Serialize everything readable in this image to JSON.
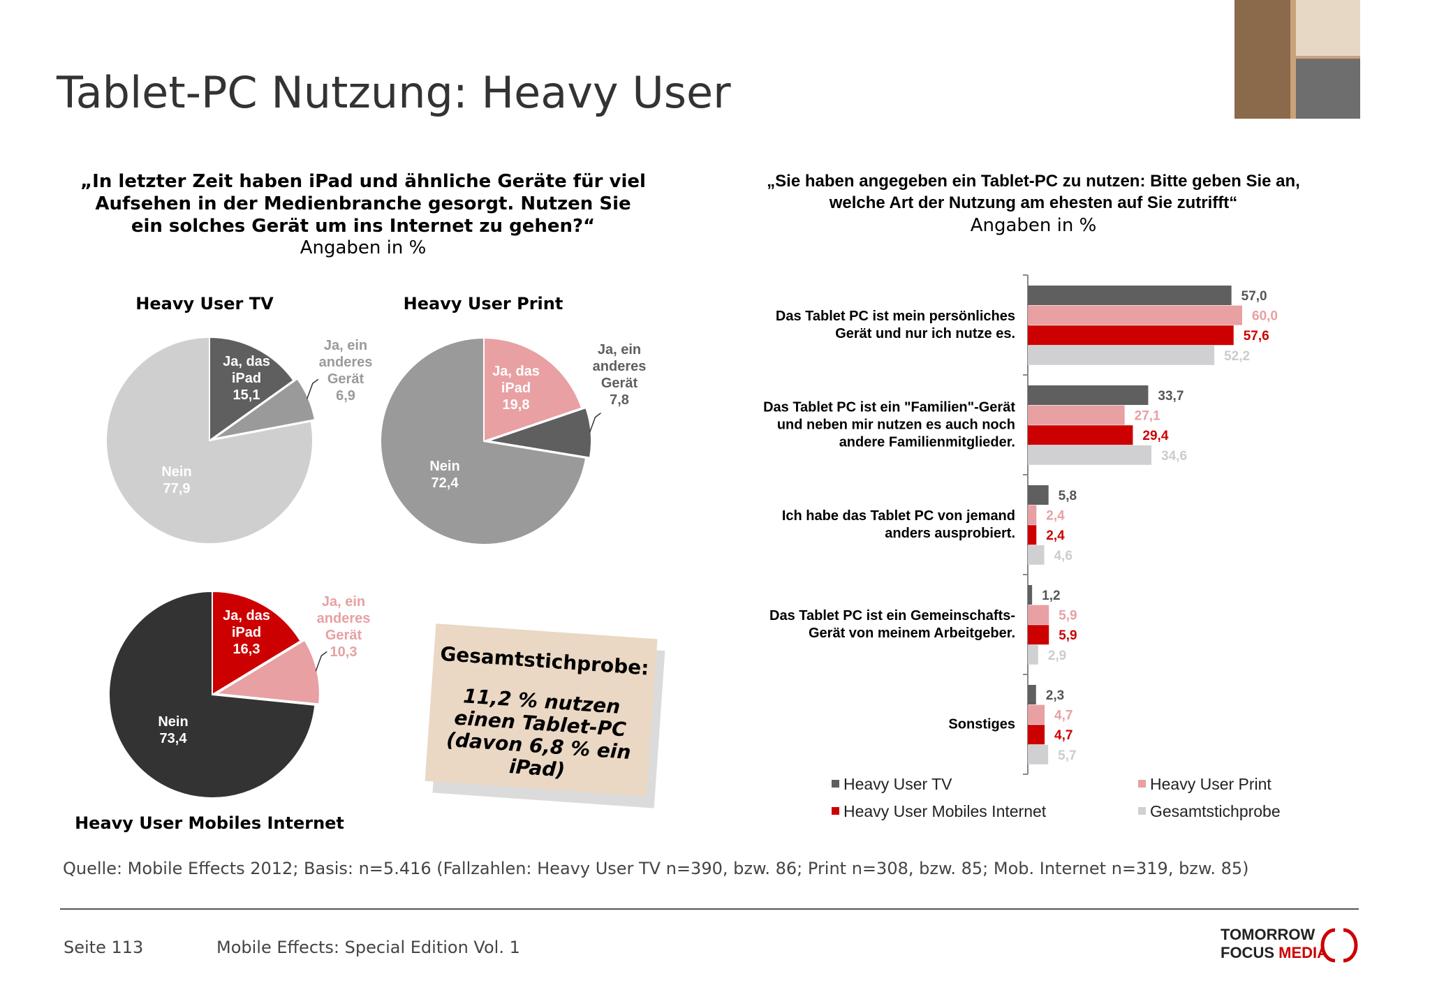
{
  "title": "Tablet-PC Nutzung: Heavy User",
  "left_question": {
    "text": "„In letzter Zeit haben iPad und ähnliche Geräte für viel Aufsehen in der Medienbranche gesorgt. Nutzen Sie ein solches Gerät um ins Internet zu gehen?“",
    "note": "Angaben in %"
  },
  "right_question": {
    "text": "„Sie haben angegeben ein Tablet-PC zu nutzen: Bitte geben Sie an, welche Art der Nutzung am ehesten auf Sie zutrifft“",
    "note": "Angaben in %"
  },
  "sticky_note": {
    "heading": "Gesamtstichprobe:",
    "text": "11,2 % nutzen einen Tablet-PC (davon 6,8 % ein iPad)"
  },
  "source": "Quelle: Mobile Effects 2012; Basis: n=5.416 (Fallzahlen: Heavy User TV n=390, bzw. 86; Print n=308, bzw. 85; Mob. Internet n=319, bzw. 85)",
  "footer": {
    "page": "Seite 113",
    "edition": "Mobile Effects: Special Edition Vol. 1"
  },
  "logo": {
    "line1": "TOMORROW",
    "line2a": "FOCUS",
    "line2b": "MEDIA"
  },
  "chart_data": [
    {
      "type": "pie",
      "title": "Heavy User TV",
      "categories": [
        "Ja, das iPad",
        "Ja, ein anderes Gerät",
        "Nein"
      ],
      "values": [
        15.1,
        6.9,
        77.9
      ],
      "value_labels": [
        "15,1",
        "6,9",
        "77,9"
      ],
      "colors": [
        "#5f5f5f",
        "#9a9a9a",
        "#cfcfcf"
      ]
    },
    {
      "type": "pie",
      "title": "Heavy User Print",
      "categories": [
        "Ja, das iPad",
        "Ja, ein anderes Gerät",
        "Nein"
      ],
      "values": [
        19.8,
        7.8,
        72.4
      ],
      "value_labels": [
        "19,8",
        "7,8",
        "72,4"
      ],
      "colors": [
        "#e8a0a3",
        "#5f5f5f",
        "#9a9a9a"
      ]
    },
    {
      "type": "pie",
      "title": "Heavy User Mobiles Internet",
      "categories": [
        "Ja, das iPad",
        "Ja, ein anderes Gerät",
        "Nein"
      ],
      "values": [
        16.3,
        10.3,
        73.4
      ],
      "value_labels": [
        "16,3",
        "10,3",
        "73,4"
      ],
      "colors": [
        "#cc0000",
        "#e8a0a3",
        "#333333"
      ]
    },
    {
      "type": "hbar",
      "categories": [
        "Das Tablet PC ist mein persönliches Gerät und nur ich nutze es.",
        "Das Tablet PC ist ein \"Familien\"-Gerät und neben mir nutzen es auch noch andere Familienmitglieder.",
        "Ich habe das Tablet PC von jemand anders ausprobiert.",
        "Das Tablet PC ist ein Gemeinschafts-Gerät von meinem Arbeitgeber.",
        "Sonstiges"
      ],
      "xlim": [
        0,
        60
      ],
      "series": [
        {
          "name": "Heavy User TV",
          "color": "#5f5f5f",
          "label_color": "#555555",
          "values": [
            57.0,
            33.7,
            5.8,
            1.2,
            2.3
          ],
          "value_labels": [
            "57,0",
            "33,7",
            "5,8",
            "1,2",
            "2,3"
          ]
        },
        {
          "name": "Heavy User Print",
          "color": "#e8a0a3",
          "label_color": "#e8a0a3",
          "values": [
            60.0,
            27.1,
            2.4,
            5.9,
            4.7
          ],
          "value_labels": [
            "60,0",
            "27,1",
            "2,4",
            "5,9",
            "4,7"
          ]
        },
        {
          "name": "Heavy User Mobiles Internet",
          "color": "#cc0000",
          "label_color": "#cc0000",
          "values": [
            57.6,
            29.4,
            2.4,
            5.9,
            4.7
          ],
          "value_labels": [
            "57,6",
            "29,4",
            "2,4",
            "5,9",
            "4,7"
          ]
        },
        {
          "name": "Gesamtstichprobe",
          "color": "#d0d0d2",
          "label_color": "#cccccc",
          "values": [
            52.2,
            34.6,
            4.6,
            2.9,
            5.7
          ],
          "value_labels": [
            "52,2",
            "34,6",
            "4,6",
            "2,9",
            "5,7"
          ]
        }
      ]
    }
  ]
}
